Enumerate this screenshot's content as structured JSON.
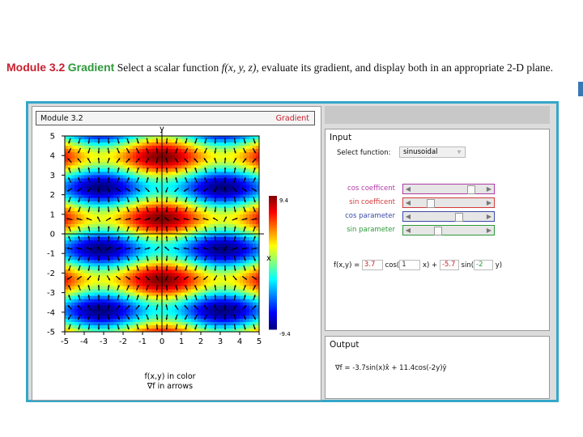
{
  "caption": {
    "module": "Module 3.2",
    "topic": "Gradient",
    "text_before": "Select a scalar function",
    "math": "f(x, y, z),",
    "text_after": "evaluate its gradient, and display both in an appropriate 2-D plane."
  },
  "app": {
    "header_left": "Module 3.2",
    "header_right": "Gradient",
    "plot": {
      "y_axis_label": "y",
      "x_axis_label": "x",
      "x_ticks": [
        "-5",
        "-4",
        "-3",
        "-2",
        "-1",
        "0",
        "1",
        "2",
        "3",
        "4",
        "5"
      ],
      "y_ticks": [
        "5",
        "4",
        "3",
        "2",
        "1",
        "0",
        "-1",
        "-2",
        "-3",
        "-4",
        "-5"
      ],
      "colorbar_max": "9.4",
      "colorbar_min": "-9.4",
      "legend_line1": "f(x,y) in color",
      "legend_line2": "∇f in arrows"
    },
    "input": {
      "title": "Input",
      "select_label": "Select function:",
      "select_value": "sinusoidal",
      "sliders": [
        {
          "label": "cos coefficent",
          "color": "#b03aa6",
          "level": 0.78
        },
        {
          "label": "sin coefficent",
          "color": "#d23a3a",
          "level": 0.2
        },
        {
          "label": "cos parameter",
          "color": "#3a4aa8",
          "level": 0.6
        },
        {
          "label": "sin parameter",
          "color": "#2e9a3a",
          "level": 0.3
        }
      ],
      "formula": {
        "prefix": "f(x,y) =",
        "a": "3.7",
        "cos_text": "cos(",
        "b": "1",
        "middle": "x) +",
        "c": "-5.7",
        "sin_text": "sin(",
        "d": "-2",
        "suffix": "y)"
      }
    },
    "output": {
      "title": "Output",
      "text": "∇f = -3.7sin(x)x̂ + 11.4cos(-2y)ŷ"
    }
  },
  "chart_data": {
    "type": "heatmap",
    "function": "f(x,y) = 3.7cos(x) - 5.7sin(-2y)",
    "xlabel": "x",
    "ylabel": "y",
    "xlim": [
      -5,
      5
    ],
    "ylim": [
      -5,
      5
    ],
    "colorbar_range": [
      -9.4,
      9.4
    ],
    "overlay": "gradient arrows"
  }
}
